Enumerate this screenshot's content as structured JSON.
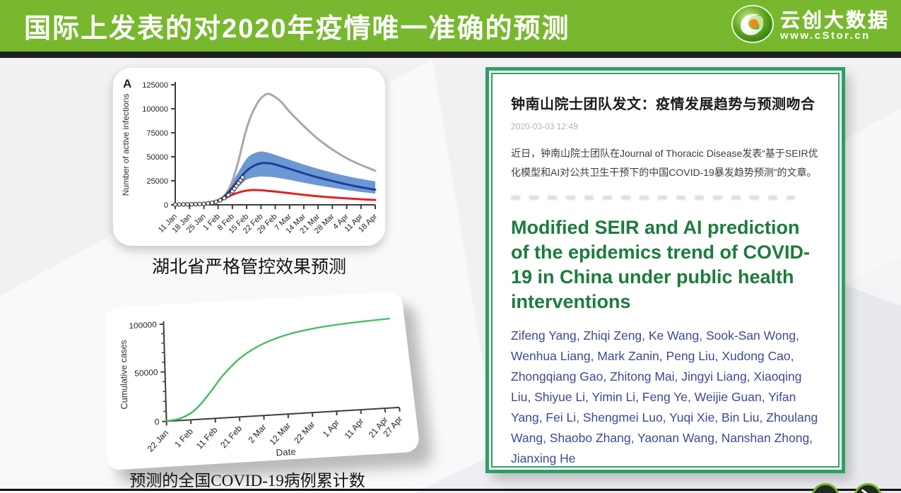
{
  "header": {
    "title": "国际上发表的对2020年疫情唯一准确的预测",
    "bg_color": "#77b82e",
    "logo": {
      "brand": "云创大数据",
      "domain": "www.cStor.cn",
      "icon": "swirl-globe-icon"
    }
  },
  "article": {
    "title": "钟南山院士团队发文：疫情发展趋势与预测吻合",
    "timestamp": "2020-03-03 12:49",
    "intro": "近日，钟南山院士团队在Journal of Thoracic Disease发表“基于SEIR优化模型和AI对公共卫生干预下的中国COVID-19暴发趋势预测”的文章。",
    "paper_title": "Modified SEIR and AI prediction of the epidemics trend of COVID-19 in China under public health interventions",
    "authors": "Zifeng Yang, Zhiqi Zeng, Ke Wang, Sook-San Wong, Wenhua Liang, Mark Zanin, Peng Liu, Xudong Cao, Zhongqiang Gao, Zhitong Mai, Jingyi Liang, Xiaoqing Liu, Shiyue Li, Yimin Li, Feng Ye, Weijie Guan, Yifan Yang, Fei Li, Shengmei Luo, Yuqi Xie, Bin Liu, Zhoulang Wang, Shaobo Zhang, Yaonan Wang, Nanshan Zhong, Jianxing He",
    "border_color": "#2f9e66",
    "paper_title_color": "#1b7c3d",
    "authors_color": "#3d4a94"
  },
  "chart_data": [
    {
      "id": "hubei-forecast",
      "type": "line",
      "panel_label": "A",
      "title": "湖北省严格管控效果预测",
      "ylabel": "Number of active infections",
      "xlabel": "",
      "ylim": [
        0,
        125000
      ],
      "yticks": [
        0,
        25000,
        50000,
        75000,
        100000,
        125000
      ],
      "x_range_days": [
        0,
        98
      ],
      "x_tick_days": [
        0,
        7,
        14,
        21,
        28,
        35,
        42,
        49,
        56,
        63,
        70,
        77,
        84,
        91,
        98
      ],
      "x_tick_labels": [
        "11 Jan",
        "18 Jan",
        "25 Jan",
        "1 Feb",
        "8 Feb",
        "15 Feb",
        "22 Feb",
        "29 Feb",
        "7 Mar",
        "14 Mar",
        "21 Mar",
        "28 Mar",
        "4 Apr",
        "11 Apr",
        "18 Apr"
      ],
      "grid": false,
      "legend": "none",
      "series": [
        {
          "name": "blue-confidence-band",
          "kind": "band",
          "color": "#5e8fce",
          "opacity": 0.92,
          "x": [
            21,
            24,
            28,
            32,
            35,
            38,
            42,
            46,
            49,
            56,
            63,
            70,
            77,
            84,
            91,
            98
          ],
          "upper": [
            6000,
            11000,
            24000,
            38000,
            48000,
            53000,
            55500,
            54000,
            52000,
            47000,
            42000,
            37500,
            33500,
            30000,
            27000,
            24500
          ],
          "lower": [
            3500,
            6500,
            13000,
            21000,
            26500,
            28500,
            29500,
            29200,
            28600,
            26000,
            23000,
            20200,
            17700,
            15400,
            13400,
            11700
          ]
        },
        {
          "name": "gray-curve",
          "kind": "line",
          "color": "#a8a8a8",
          "width": 3,
          "x": [
            0,
            7,
            14,
            21,
            25,
            28,
            31,
            34,
            37,
            40,
            42,
            45,
            48,
            52,
            56,
            63,
            70,
            77,
            84,
            91,
            98
          ],
          "y": [
            300,
            600,
            1500,
            5000,
            12000,
            25000,
            46000,
            72000,
            92000,
            105000,
            111000,
            115500,
            113500,
            107000,
            97000,
            82000,
            68500,
            57500,
            48500,
            41500,
            35500
          ]
        },
        {
          "name": "dark-blue-curve",
          "kind": "line",
          "color": "#1f3d9c",
          "width": 3,
          "x": [
            0,
            7,
            14,
            21,
            24,
            28,
            32,
            35,
            38,
            42,
            46,
            49,
            56,
            63,
            70,
            77,
            84,
            91,
            98
          ],
          "y": [
            200,
            400,
            1000,
            4500,
            8500,
            18000,
            28500,
            35500,
            40000,
            43300,
            43300,
            42000,
            37500,
            32800,
            28500,
            24800,
            21300,
            18300,
            15800
          ]
        },
        {
          "name": "red-curve",
          "kind": "line",
          "color": "#e32222",
          "width": 3,
          "x": [
            0,
            7,
            14,
            21,
            24,
            28,
            32,
            35,
            38,
            42,
            49,
            56,
            63,
            70,
            77,
            84,
            91,
            98
          ],
          "y": [
            150,
            300,
            800,
            3500,
            6500,
            10500,
            13500,
            14800,
            15400,
            15200,
            13800,
            12100,
            10400,
            8900,
            7700,
            6700,
            5800,
            5100
          ]
        },
        {
          "name": "observed-white-dots",
          "kind": "scatter",
          "color": "#ffffff",
          "stroke": "#3a3a3a",
          "x": [
            0,
            2,
            4,
            6,
            8,
            10,
            12,
            14,
            16,
            18,
            20,
            22,
            24,
            26,
            28,
            29,
            30,
            31,
            32,
            33
          ],
          "y": [
            300,
            350,
            420,
            480,
            560,
            680,
            850,
            1100,
            1500,
            2100,
            3100,
            4700,
            7000,
            10200,
            14200,
            16800,
            19600,
            22500,
            25500,
            28500
          ]
        }
      ]
    },
    {
      "id": "national-cumulative",
      "type": "line",
      "title": "预测的全国COVID-19病例累计数",
      "ylabel": "Cumulative cases",
      "xlabel": "Date",
      "ylim": [
        0,
        100000
      ],
      "yticks": [
        0,
        50000,
        100000
      ],
      "y_minor_step": 10000,
      "x_range_days": [
        0,
        96
      ],
      "x_tick_days": [
        0,
        10,
        20,
        30,
        40,
        50,
        60,
        70,
        80,
        90,
        96
      ],
      "x_tick_labels": [
        "22 Jan",
        "1 Feb",
        "11 Feb",
        "21 Feb",
        "2 Mar",
        "12 Mar",
        "22 Mar",
        "1 Apr",
        "11 Apr",
        "21 Apr",
        "27 Apr"
      ],
      "grid": false,
      "legend": "none",
      "series": [
        {
          "name": "green-cumulative-curve",
          "kind": "line",
          "color": "#44bd5e",
          "width": 2.5,
          "x": [
            0,
            3,
            6,
            10,
            13,
            16,
            20,
            23,
            26,
            30,
            34,
            38,
            42,
            46,
            50,
            55,
            60,
            65,
            70,
            75,
            80,
            85,
            90,
            96
          ],
          "y": [
            300,
            900,
            2200,
            6500,
            12000,
            19500,
            31000,
            40000,
            47500,
            56500,
            63500,
            69000,
            73500,
            77000,
            80000,
            82800,
            85000,
            86700,
            88000,
            89100,
            90000,
            90700,
            91300,
            92000
          ]
        }
      ]
    }
  ],
  "nav": {
    "right_icon": "diagonal-line-arrow",
    "left_icon": "blank-circle"
  }
}
